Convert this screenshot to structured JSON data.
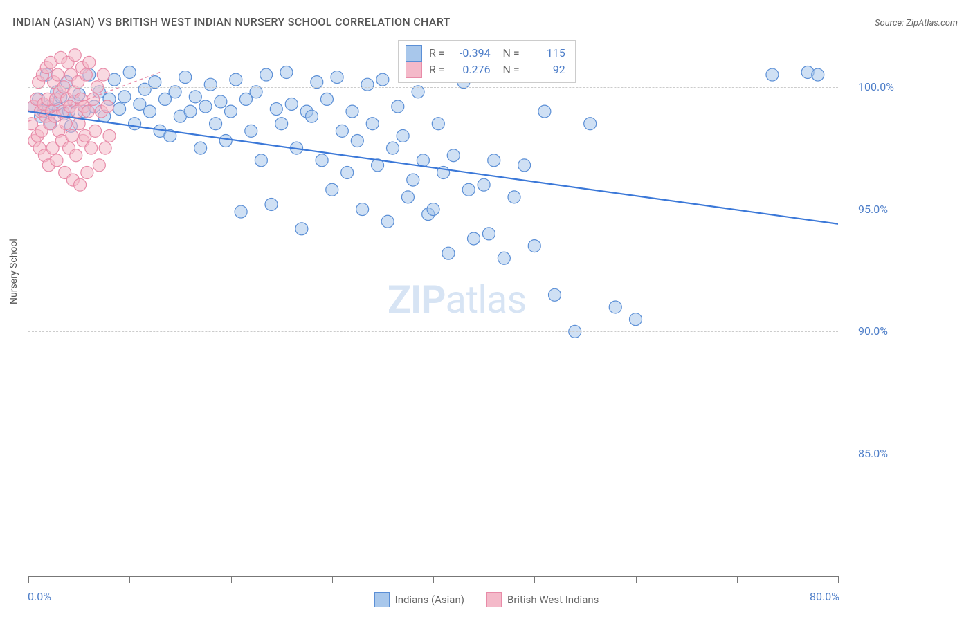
{
  "title": "INDIAN (ASIAN) VS BRITISH WEST INDIAN NURSERY SCHOOL CORRELATION CHART",
  "source": "Source: ZipAtlas.com",
  "ylabel": "Nursery School",
  "watermark_bold": "ZIP",
  "watermark_light": "atlas",
  "chart": {
    "type": "scatter",
    "xlim": [
      0,
      80
    ],
    "ylim": [
      80,
      102
    ],
    "x_tick_positions": [
      0,
      10,
      20,
      30,
      40,
      50,
      60,
      70,
      80
    ],
    "x_tick_labels_shown": {
      "0": "0.0%",
      "80": "80.0%"
    },
    "y_tick_positions": [
      85,
      90,
      95,
      100
    ],
    "y_tick_labels": {
      "85": "85.0%",
      "90": "90.0%",
      "95": "95.0%",
      "100": "100.0%"
    },
    "background_color": "#ffffff",
    "grid_color": "#cccccc",
    "axis_color": "#777777",
    "tick_label_color": "#4f7fc9",
    "marker_radius": 9,
    "marker_stroke_width": 1.2,
    "series": [
      {
        "name": "Indians (Asian)",
        "fill": "#a8c7eb",
        "stroke": "#5b8fd6",
        "fill_opacity": 0.55,
        "R": "-0.394",
        "N": "115",
        "trend": {
          "x1": 0,
          "y1": 99.0,
          "x2": 80,
          "y2": 94.4,
          "color": "#3b78d8",
          "width": 2.2
        },
        "points": [
          [
            0.5,
            99.2
          ],
          [
            1.0,
            99.5
          ],
          [
            1.2,
            98.8
          ],
          [
            1.5,
            99.0
          ],
          [
            1.8,
            100.5
          ],
          [
            2.0,
            99.2
          ],
          [
            2.2,
            98.5
          ],
          [
            2.5,
            99.3
          ],
          [
            2.8,
            99.8
          ],
          [
            3.0,
            99.1
          ],
          [
            3.2,
            99.6
          ],
          [
            3.5,
            98.9
          ],
          [
            3.8,
            100.2
          ],
          [
            4.0,
            99.0
          ],
          [
            4.2,
            98.4
          ],
          [
            4.5,
            99.4
          ],
          [
            5.0,
            99.7
          ],
          [
            5.5,
            99.0
          ],
          [
            6.0,
            100.5
          ],
          [
            6.5,
            99.2
          ],
          [
            7.0,
            99.8
          ],
          [
            7.5,
            98.8
          ],
          [
            8.0,
            99.5
          ],
          [
            8.5,
            100.3
          ],
          [
            9.0,
            99.1
          ],
          [
            9.5,
            99.6
          ],
          [
            10.0,
            100.6
          ],
          [
            10.5,
            98.5
          ],
          [
            11.0,
            99.3
          ],
          [
            11.5,
            99.9
          ],
          [
            12.0,
            99.0
          ],
          [
            12.5,
            100.2
          ],
          [
            13.0,
            98.2
          ],
          [
            13.5,
            99.5
          ],
          [
            14.0,
            98.0
          ],
          [
            14.5,
            99.8
          ],
          [
            15.0,
            98.8
          ],
          [
            15.5,
            100.4
          ],
          [
            16.0,
            99.0
          ],
          [
            16.5,
            99.6
          ],
          [
            17.0,
            97.5
          ],
          [
            17.5,
            99.2
          ],
          [
            18.0,
            100.1
          ],
          [
            18.5,
            98.5
          ],
          [
            19.0,
            99.4
          ],
          [
            19.5,
            97.8
          ],
          [
            20.0,
            99.0
          ],
          [
            20.5,
            100.3
          ],
          [
            21.0,
            94.9
          ],
          [
            21.5,
            99.5
          ],
          [
            22.0,
            98.2
          ],
          [
            22.5,
            99.8
          ],
          [
            23.0,
            97.0
          ],
          [
            23.5,
            100.5
          ],
          [
            24.0,
            95.2
          ],
          [
            24.5,
            99.1
          ],
          [
            25.0,
            98.5
          ],
          [
            25.5,
            100.6
          ],
          [
            26.0,
            99.3
          ],
          [
            26.5,
            97.5
          ],
          [
            27.0,
            94.2
          ],
          [
            27.5,
            99.0
          ],
          [
            28.0,
            98.8
          ],
          [
            28.5,
            100.2
          ],
          [
            29.0,
            97.0
          ],
          [
            29.5,
            99.5
          ],
          [
            30.0,
            95.8
          ],
          [
            30.5,
            100.4
          ],
          [
            31.0,
            98.2
          ],
          [
            31.5,
            96.5
          ],
          [
            32.0,
            99.0
          ],
          [
            32.5,
            97.8
          ],
          [
            33.0,
            95.0
          ],
          [
            33.5,
            100.1
          ],
          [
            34.0,
            98.5
          ],
          [
            34.5,
            96.8
          ],
          [
            35.0,
            100.3
          ],
          [
            35.5,
            94.5
          ],
          [
            36.0,
            97.5
          ],
          [
            36.5,
            99.2
          ],
          [
            37.0,
            98.0
          ],
          [
            37.5,
            95.5
          ],
          [
            38.0,
            96.2
          ],
          [
            38.5,
            99.8
          ],
          [
            39.0,
            97.0
          ],
          [
            39.5,
            94.8
          ],
          [
            40.0,
            95.0
          ],
          [
            40.5,
            98.5
          ],
          [
            41.0,
            96.5
          ],
          [
            41.5,
            93.2
          ],
          [
            42.0,
            97.2
          ],
          [
            43.0,
            100.2
          ],
          [
            43.5,
            95.8
          ],
          [
            44.0,
            93.8
          ],
          [
            45.0,
            96.0
          ],
          [
            45.5,
            94.0
          ],
          [
            46.0,
            97.0
          ],
          [
            47.0,
            93.0
          ],
          [
            48.0,
            95.5
          ],
          [
            49.0,
            96.8
          ],
          [
            50.0,
            93.5
          ],
          [
            51.0,
            99.0
          ],
          [
            52.0,
            91.5
          ],
          [
            53.0,
            100.5
          ],
          [
            54.0,
            90.0
          ],
          [
            55.5,
            98.5
          ],
          [
            58.0,
            91.0
          ],
          [
            60.0,
            90.5
          ],
          [
            73.5,
            100.5
          ],
          [
            77.0,
            100.6
          ],
          [
            78.0,
            100.5
          ]
        ]
      },
      {
        "name": "British West Indians",
        "fill": "#f4b9c9",
        "stroke": "#e88ba8",
        "fill_opacity": 0.55,
        "R": "0.276",
        "N": "92",
        "trend": {
          "x1": 0,
          "y1": 98.6,
          "x2": 13,
          "y2": 100.6,
          "color": "#e88ba8",
          "width": 1.4,
          "dash": "5,4"
        },
        "points": [
          [
            0.3,
            98.5
          ],
          [
            0.5,
            99.2
          ],
          [
            0.6,
            97.8
          ],
          [
            0.8,
            99.5
          ],
          [
            0.9,
            98.0
          ],
          [
            1.0,
            100.2
          ],
          [
            1.1,
            97.5
          ],
          [
            1.2,
            99.0
          ],
          [
            1.3,
            98.2
          ],
          [
            1.4,
            100.5
          ],
          [
            1.5,
            99.3
          ],
          [
            1.6,
            97.2
          ],
          [
            1.7,
            98.8
          ],
          [
            1.8,
            100.8
          ],
          [
            1.9,
            99.5
          ],
          [
            2.0,
            96.8
          ],
          [
            2.1,
            98.5
          ],
          [
            2.2,
            101.0
          ],
          [
            2.3,
            99.0
          ],
          [
            2.4,
            97.5
          ],
          [
            2.5,
            100.2
          ],
          [
            2.6,
            98.8
          ],
          [
            2.7,
            99.5
          ],
          [
            2.8,
            97.0
          ],
          [
            2.9,
            100.5
          ],
          [
            3.0,
            98.2
          ],
          [
            3.1,
            99.8
          ],
          [
            3.2,
            101.2
          ],
          [
            3.3,
            97.8
          ],
          [
            3.4,
            99.0
          ],
          [
            3.5,
            100.0
          ],
          [
            3.6,
            96.5
          ],
          [
            3.7,
            98.5
          ],
          [
            3.8,
            99.5
          ],
          [
            3.9,
            101.0
          ],
          [
            4.0,
            97.5
          ],
          [
            4.1,
            99.2
          ],
          [
            4.2,
            100.5
          ],
          [
            4.3,
            98.0
          ],
          [
            4.4,
            96.2
          ],
          [
            4.5,
            99.8
          ],
          [
            4.6,
            101.3
          ],
          [
            4.7,
            97.2
          ],
          [
            4.8,
            99.0
          ],
          [
            4.9,
            100.2
          ],
          [
            5.0,
            98.5
          ],
          [
            5.1,
            96.0
          ],
          [
            5.2,
            99.5
          ],
          [
            5.3,
            100.8
          ],
          [
            5.4,
            97.8
          ],
          [
            5.5,
            99.2
          ],
          [
            5.6,
            98.0
          ],
          [
            5.7,
            100.5
          ],
          [
            5.8,
            96.5
          ],
          [
            5.9,
            99.0
          ],
          [
            6.0,
            101.0
          ],
          [
            6.2,
            97.5
          ],
          [
            6.4,
            99.5
          ],
          [
            6.6,
            98.2
          ],
          [
            6.8,
            100.0
          ],
          [
            7.0,
            96.8
          ],
          [
            7.2,
            99.0
          ],
          [
            7.4,
            100.5
          ],
          [
            7.6,
            97.5
          ],
          [
            7.8,
            99.2
          ],
          [
            8.0,
            98.0
          ]
        ]
      }
    ]
  },
  "legend": {
    "items": [
      {
        "label": "Indians (Asian)",
        "fill": "#a8c7eb",
        "stroke": "#5b8fd6"
      },
      {
        "label": "British West Indians",
        "fill": "#f4b9c9",
        "stroke": "#e88ba8"
      }
    ]
  }
}
